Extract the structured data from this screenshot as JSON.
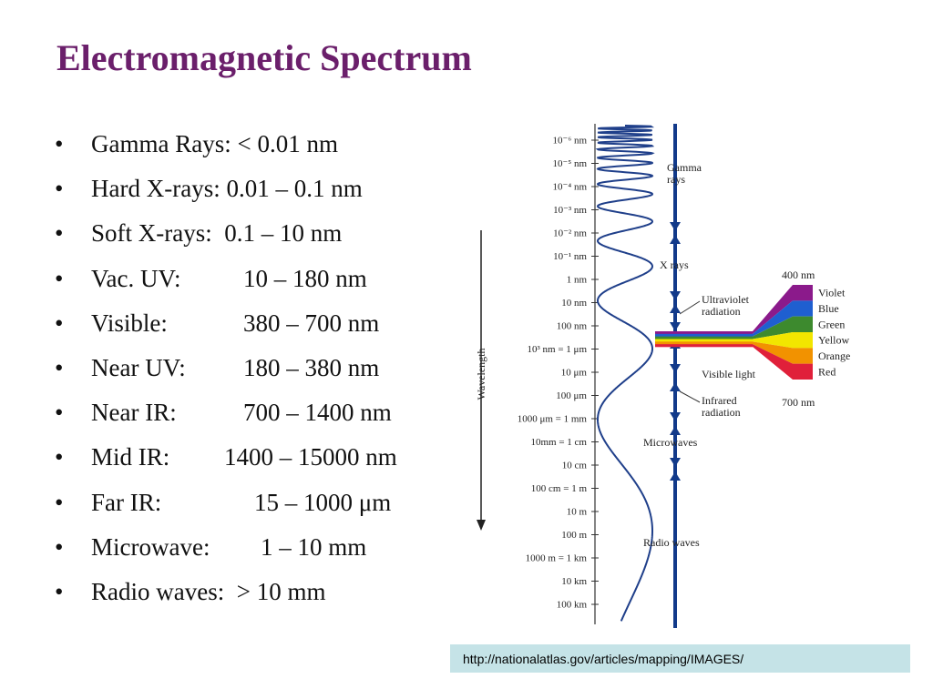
{
  "title": "Electromagnetic Spectrum",
  "bullets": [
    {
      "label": "Gamma Rays: ",
      "value": "< 0.01 nm",
      "indent": 0
    },
    {
      "label": "Hard X-rays: ",
      "value": "0.01 – 0.1 nm",
      "indent": 0
    },
    {
      "label": "Soft X-rays:  ",
      "value": "0.1 – 10 nm",
      "indent": 0
    },
    {
      "label": "Vac. UV:",
      "value": "10 – 180 nm",
      "indent": 167
    },
    {
      "label": "Visible:",
      "value": "380 – 700 nm",
      "indent": 167
    },
    {
      "label": "Near UV:",
      "value": "180 – 380 nm",
      "indent": 167
    },
    {
      "label": "Near IR:",
      "value": "700 – 1400 nm",
      "indent": 167
    },
    {
      "label": "Mid IR:",
      "value": "1400 – 15000 nm",
      "indent": 146
    },
    {
      "label": "Far IR:",
      "value": "15 – 1000 μm",
      "indent": 179
    },
    {
      "label": "Microwave:",
      "value": "1 – 10 mm",
      "indent": 186
    },
    {
      "label": "Radio waves:  ",
      "value": "> 10 mm",
      "indent": 0
    }
  ],
  "diagram": {
    "wavelength_label": "Wavelength",
    "scale_labels": [
      "10⁻⁶ nm",
      "10⁻⁵ nm",
      "10⁻⁴ nm",
      "10⁻³ nm",
      "10⁻² nm",
      "10⁻¹ nm",
      "1 nm",
      "10 nm",
      "100 nm",
      "10³ nm = 1 μm",
      "10 μm",
      "100 μm",
      "1000 μm = 1 mm",
      "10mm = 1 cm",
      "10 cm",
      "100 cm = 1 m",
      "10 m",
      "100 m",
      "1000 m = 1 km",
      "10 km",
      "100 km"
    ],
    "regions": [
      {
        "name": "gamma",
        "lines": [
          "Gamma",
          "rays"
        ]
      },
      {
        "name": "xrays",
        "lines": [
          "X rays"
        ]
      },
      {
        "name": "uv",
        "lines": [
          "Ultraviolet",
          "radiation"
        ]
      },
      {
        "name": "visible",
        "lines": [
          "Visible light"
        ]
      },
      {
        "name": "infrared",
        "lines": [
          "Infrared",
          "radiation"
        ]
      },
      {
        "name": "microwaves",
        "lines": [
          "Microwaves"
        ]
      },
      {
        "name": "radio",
        "lines": [
          "Radio waves"
        ]
      }
    ],
    "visible_top": "400 nm",
    "visible_bottom": "700 nm",
    "colors": [
      {
        "name": "Violet",
        "hex": "#8b1a8b"
      },
      {
        "name": "Blue",
        "hex": "#1f5fd0"
      },
      {
        "name": "Green",
        "hex": "#3d8a2e"
      },
      {
        "name": "Yellow",
        "hex": "#f2e600"
      },
      {
        "name": "Orange",
        "hex": "#f29200"
      },
      {
        "name": "Red",
        "hex": "#e0203a"
      }
    ]
  },
  "source": "http://nationalatlas.gov/articles/mapping/IMAGES/"
}
